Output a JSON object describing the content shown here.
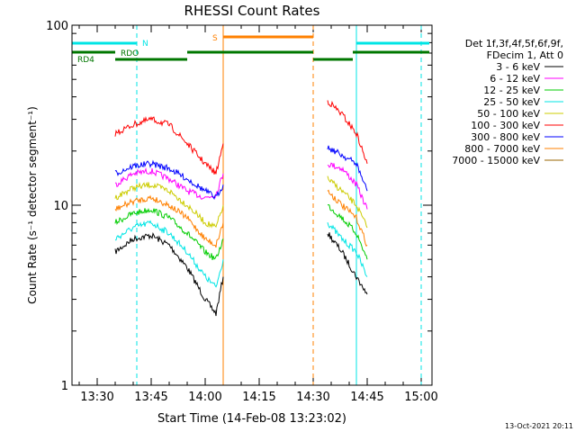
{
  "chart_data": {
    "type": "line",
    "title": "RHESSI Count Rates",
    "xlabel": "Start Time (14-Feb-08 13:23:02)",
    "ylabel": "Count Rate (s⁻¹ detector segment⁻¹)",
    "y_scale": "log",
    "ylim": [
      1,
      100
    ],
    "xlim": [
      "13:23",
      "15:03"
    ],
    "x_ticks": [
      "13:30",
      "13:45",
      "14:00",
      "14:15",
      "14:30",
      "14:45",
      "15:00"
    ],
    "y_ticks": [
      "1",
      "10",
      "100"
    ],
    "grid": false,
    "legend_placement": "right",
    "legend_header": [
      "Det 1f,3f,4f,5f,6f,9f,",
      "FDecim 1, Att 0"
    ],
    "series": [
      {
        "name": "3 - 6 keV",
        "color": "#000000",
        "x": [
          "13:35",
          "13:40",
          "13:45",
          "13:50",
          "13:55",
          "14:00",
          "14:03",
          "14:05"
        ],
        "values": [
          5.5,
          6.5,
          6.8,
          6.0,
          4.5,
          3.0,
          2.5,
          4.0
        ],
        "x2": [
          "14:34",
          "14:38",
          "14:42",
          "14:45"
        ],
        "values2": [
          7.0,
          5.5,
          4.0,
          3.2
        ]
      },
      {
        "name": "6 - 12 keV",
        "color": "#ff00ff",
        "x": [
          "13:35",
          "13:40",
          "13:45",
          "13:50",
          "13:55",
          "14:00",
          "14:03",
          "14:05"
        ],
        "values": [
          13,
          15,
          15.5,
          14,
          12,
          11,
          11.5,
          15
        ],
        "x2": [
          "14:34",
          "14:38",
          "14:42",
          "14:45"
        ],
        "values2": [
          17,
          16,
          13,
          9.5
        ]
      },
      {
        "name": "12 - 25 keV",
        "color": "#00cc00",
        "x": [
          "13:35",
          "13:40",
          "13:45",
          "13:50",
          "13:55",
          "14:00",
          "14:03",
          "14:05"
        ],
        "values": [
          8,
          9,
          9.5,
          8.5,
          7,
          5.5,
          5.0,
          6.5
        ],
        "x2": [
          "14:34",
          "14:38",
          "14:42",
          "14:45"
        ],
        "values2": [
          10,
          8.5,
          7,
          5
        ]
      },
      {
        "name": "25 - 50 keV",
        "color": "#00e5e5",
        "x": [
          "13:35",
          "13:40",
          "13:45",
          "13:50",
          "13:55",
          "14:00",
          "14:03",
          "14:05"
        ],
        "values": [
          6.5,
          7.5,
          8,
          7,
          5.5,
          4.0,
          3.5,
          5.0
        ],
        "x2": [
          "14:34",
          "14:38",
          "14:42",
          "14:45"
        ],
        "values2": [
          8,
          6.5,
          5.5,
          4.0
        ]
      },
      {
        "name": "50 - 100 keV",
        "color": "#cccc00",
        "x": [
          "13:35",
          "13:40",
          "13:45",
          "13:50",
          "13:55",
          "14:00",
          "14:03",
          "14:05"
        ],
        "values": [
          11,
          12.5,
          13,
          12,
          10,
          8,
          7.5,
          10
        ],
        "x2": [
          "14:34",
          "14:38",
          "14:42",
          "14:45"
        ],
        "values2": [
          14,
          12,
          10,
          7.5
        ]
      },
      {
        "name": "100 - 300 keV",
        "color": "#ff0000",
        "x": [
          "13:35",
          "13:40",
          "13:45",
          "13:50",
          "13:55",
          "14:00",
          "14:03",
          "14:05"
        ],
        "values": [
          25,
          28,
          30,
          28,
          22,
          17,
          15,
          22
        ],
        "x2": [
          "14:34",
          "14:38",
          "14:42",
          "14:45"
        ],
        "values2": [
          38,
          32,
          25,
          17
        ]
      },
      {
        "name": "300 - 800 keV",
        "color": "#0000ff",
        "x": [
          "13:35",
          "13:40",
          "13:45",
          "13:50",
          "13:55",
          "14:00",
          "14:03",
          "14:05"
        ],
        "values": [
          15,
          16.5,
          17,
          16,
          14,
          12,
          11,
          13
        ],
        "x2": [
          "14:34",
          "14:38",
          "14:42",
          "14:45"
        ],
        "values2": [
          21,
          19,
          17,
          12
        ]
      },
      {
        "name": "800 - 7000 keV",
        "color": "#ff8000",
        "x": [
          "13:35",
          "13:40",
          "13:45",
          "13:50",
          "13:55",
          "14:00",
          "14:03",
          "14:05"
        ],
        "values": [
          9.5,
          10.5,
          11,
          10,
          8.5,
          6.5,
          6.0,
          8.0
        ],
        "x2": [
          "14:34",
          "14:38",
          "14:42",
          "14:45"
        ],
        "values2": [
          12,
          10,
          8.5,
          6
        ]
      },
      {
        "name": "7000 - 15000 keV",
        "color": "#996600",
        "x": [],
        "values": []
      }
    ],
    "annotations": [
      {
        "label": "RDO",
        "color": "#007700"
      },
      {
        "label": "RD4",
        "color": "#007700"
      },
      {
        "label": "N",
        "color": "#00e5e5"
      },
      {
        "label": "S",
        "color": "#ff8000"
      }
    ],
    "footer_date": "13-Oct-2021 20:11"
  }
}
